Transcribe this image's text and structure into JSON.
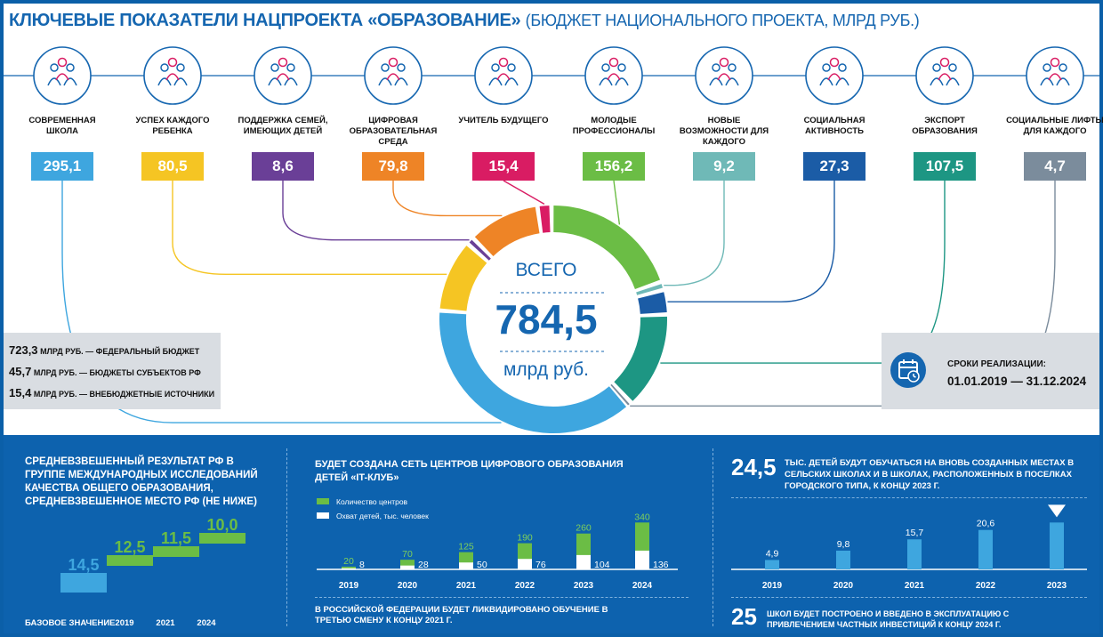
{
  "header": {
    "title": "КЛЮЧЕВЫЕ ПОКАЗАТЕЛИ НАЦПРОЕКТА «ОБРАЗОВАНИЕ»",
    "subtitle": "(БЮДЖЕТ НАЦИОНАЛЬНОГО ПРОЕКТА, МЛРД РУБ.)"
  },
  "total": {
    "label": "ВСЕГО",
    "value": "784,5",
    "unit": "млрд руб."
  },
  "chart_data": [
    {
      "type": "pie",
      "title": "",
      "total": 784.5,
      "categories": [
        "Современная школа",
        "Успех каждого ребенка",
        "Поддержка семей, имеющих детей",
        "Цифровая образовательная среда",
        "Учитель будущего",
        "Молодые профессионалы",
        "Новые возможности для каждого",
        "Социальная активность",
        "Экспорт образования",
        "Социальные лифты для каждого"
      ],
      "labels": [
        "СОВРЕМЕННАЯ ШКОЛА",
        "УСПЕХ КАЖДОГО РЕБЕНКА",
        "ПОДДЕРЖКА СЕМЕЙ, ИМЕЮЩИХ ДЕТЕЙ",
        "ЦИФРОВАЯ ОБРАЗОВАТЕЛЬНАЯ СРЕДА",
        "УЧИТЕЛЬ БУДУЩЕГО",
        "МОЛОДЫЕ ПРОФЕССИОНАЛЫ",
        "НОВЫЕ ВОЗМОЖНОСТИ ДЛЯ КАЖДОГО",
        "СОЦИАЛЬНАЯ АКТИВНОСТЬ",
        "ЭКСПОРТ ОБРАЗОВАНИЯ",
        "СОЦИАЛЬНЫЕ ЛИФТЫ ДЛЯ КАЖДОГО"
      ],
      "values": [
        295.1,
        80.5,
        8.6,
        79.8,
        15.4,
        156.2,
        9.2,
        27.3,
        107.5,
        4.7
      ],
      "value_labels": [
        "295,1",
        "80,5",
        "8,6",
        "79,8",
        "15,4",
        "156,2",
        "9,2",
        "27,3",
        "107,5",
        "4,7"
      ],
      "colors": [
        "#3ea6df",
        "#f5c523",
        "#6a3f97",
        "#ee8426",
        "#d91c63",
        "#6bbd45",
        "#6fb9b7",
        "#1b5ca6",
        "#1d9683",
        "#7b8c9c"
      ],
      "icons": [
        "school-icon",
        "talent-icon",
        "family-icon",
        "digital-screen-icon",
        "teacher-icon",
        "young-professionals-icon",
        "opportunities-icon",
        "social-activity-icon",
        "export-globe-icon",
        "graduation-books-icon"
      ]
    },
    {
      "type": "bar",
      "title": "СРЕДНЕВЗВЕШЕННЫЙ РЕЗУЛЬТАТ РФ В ГРУППЕ МЕЖДУНАРОДНЫХ ИССЛЕДОВАНИЙ КАЧЕСТВА ОБЩЕГО ОБРАЗОВАНИЯ, СРЕДНЕВЗВЕШЕННОЕ МЕСТО РФ (НЕ НИЖЕ)",
      "categories": [
        "БАЗОВОЕ ЗНАЧЕНИЕ",
        "2019",
        "2021",
        "2024"
      ],
      "values": [
        14.5,
        12.5,
        11.5,
        10.0
      ],
      "value_labels": [
        "14,5",
        "12,5",
        "11,5",
        "10,0"
      ],
      "colors": [
        "#3ea6df",
        "#6bbd45"
      ]
    },
    {
      "type": "bar",
      "title": "БУДЕТ СОЗДАНА СЕТЬ ЦЕНТРОВ ЦИФРОВОГО ОБРАЗОВАНИЯ ДЕТЕЙ «IT-КЛУБ»",
      "categories": [
        "2019",
        "2020",
        "2021",
        "2022",
        "2023",
        "2024"
      ],
      "series": [
        {
          "name": "Количество центров",
          "values": [
            20,
            70,
            125,
            190,
            260,
            340
          ],
          "color": "#6bbd45"
        },
        {
          "name": "Охват детей, тыс. человек",
          "values": [
            8,
            28,
            50,
            76,
            104,
            136
          ],
          "color": "#ffffff"
        }
      ],
      "note": "В РОССИЙСКОЙ ФЕДЕРАЦИИ БУДЕТ ЛИКВИДИРОВАНО ОБУЧЕНИЕ В ТРЕТЬЮ СМЕНУ К КОНЦУ 2021 Г."
    },
    {
      "type": "bar",
      "headline_value": "24,5",
      "title": "ТЫС. ДЕТЕЙ БУДУТ ОБУЧАТЬСЯ НА ВНОВЬ СОЗДАННЫХ МЕСТАХ В СЕЛЬСКИХ ШКОЛАХ И В ШКОЛАХ, РАСПОЛОЖЕННЫХ В ПОСЕЛКАХ ГОРОДСКОГО ТИПА, К КОНЦУ 2023 Г.",
      "categories": [
        "2019",
        "2020",
        "2021",
        "2022",
        "2023"
      ],
      "values": [
        4.9,
        9.8,
        15.7,
        20.6,
        24.5
      ],
      "value_labels": [
        "4,9",
        "9,8",
        "15,7",
        "20,6",
        ""
      ],
      "color": "#3ea6df"
    }
  ],
  "sources": [
    {
      "num": "723,3",
      "text": "МЛРД РУБ. — ФЕДЕРАЛЬНЫЙ БЮДЖЕТ"
    },
    {
      "num": "45,7",
      "text": "МЛРД РУБ. — БЮДЖЕТЫ СУБЪЕКТОВ РФ"
    },
    {
      "num": "15,4",
      "text": "МЛРД РУБ. — ВНЕБЮДЖЕТНЫЕ ИСТОЧНИКИ"
    }
  ],
  "timeline": {
    "icon": "calendar-icon",
    "label": "СРОКИ РЕАЛИЗАЦИИ:",
    "value": "01.01.2019 — 31.12.2024"
  },
  "schools_note": {
    "number": "25",
    "text": "ШКОЛ БУДЕТ ПОСТРОЕНО И ВВЕДЕНО В ЭКСПЛУАТАЦИЮ С ПРИВЛЕЧЕНИЕМ ЧАСТНЫХ ИНВЕСТИЦИЙ К КОНЦУ 2024 Г."
  }
}
